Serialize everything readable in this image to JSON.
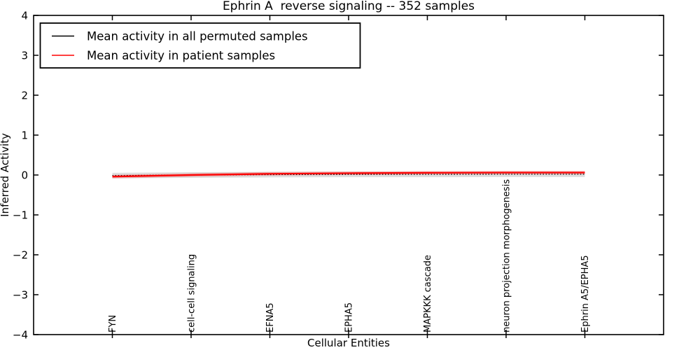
{
  "chart_data": {
    "type": "line",
    "title": "Ephrin A  reverse signaling -- 352 samples",
    "xlabel": "Cellular Entities",
    "ylabel": "Inferred Activity",
    "xlim": [
      0,
      8
    ],
    "ylim": [
      -4,
      4
    ],
    "grid": false,
    "background": "#ffffff",
    "frame_color": "#000000",
    "ytick_values": [
      4,
      3,
      2,
      1,
      0,
      -1,
      -2,
      -3,
      -4
    ],
    "ytick_labels": [
      "4",
      "3",
      "2",
      "1",
      "0",
      "−1",
      "−2",
      "−3",
      "−4"
    ],
    "x": [
      1,
      2,
      3,
      4,
      5,
      6,
      7
    ],
    "categories": [
      "FYN",
      "cell-cell signaling",
      "EFNA5",
      "EPHA5",
      "MAPKKK cascade",
      "neuron projection morphogenesis",
      "Ephrin A5/EPHA5"
    ],
    "series": [
      {
        "name": "Mean activity in all permuted samples",
        "color": "#000000",
        "style": "dotted",
        "linewidth": 1.3,
        "values": [
          -0.015,
          0.0,
          0.01,
          0.015,
          0.015,
          0.02,
          0.02
        ],
        "band_halfwidth": 0.07,
        "band_color": "rgba(0,0,0,0.13)"
      },
      {
        "name": "Mean activity in patient samples",
        "color": "#ff0000",
        "style": "solid",
        "linewidth": 2.2,
        "values": [
          -0.04,
          0.0,
          0.03,
          0.045,
          0.055,
          0.06,
          0.06
        ],
        "band_halfwidth": 0.045,
        "band_color": "rgba(255,0,0,0.22)"
      }
    ],
    "legend": {
      "position": "upper left"
    }
  }
}
